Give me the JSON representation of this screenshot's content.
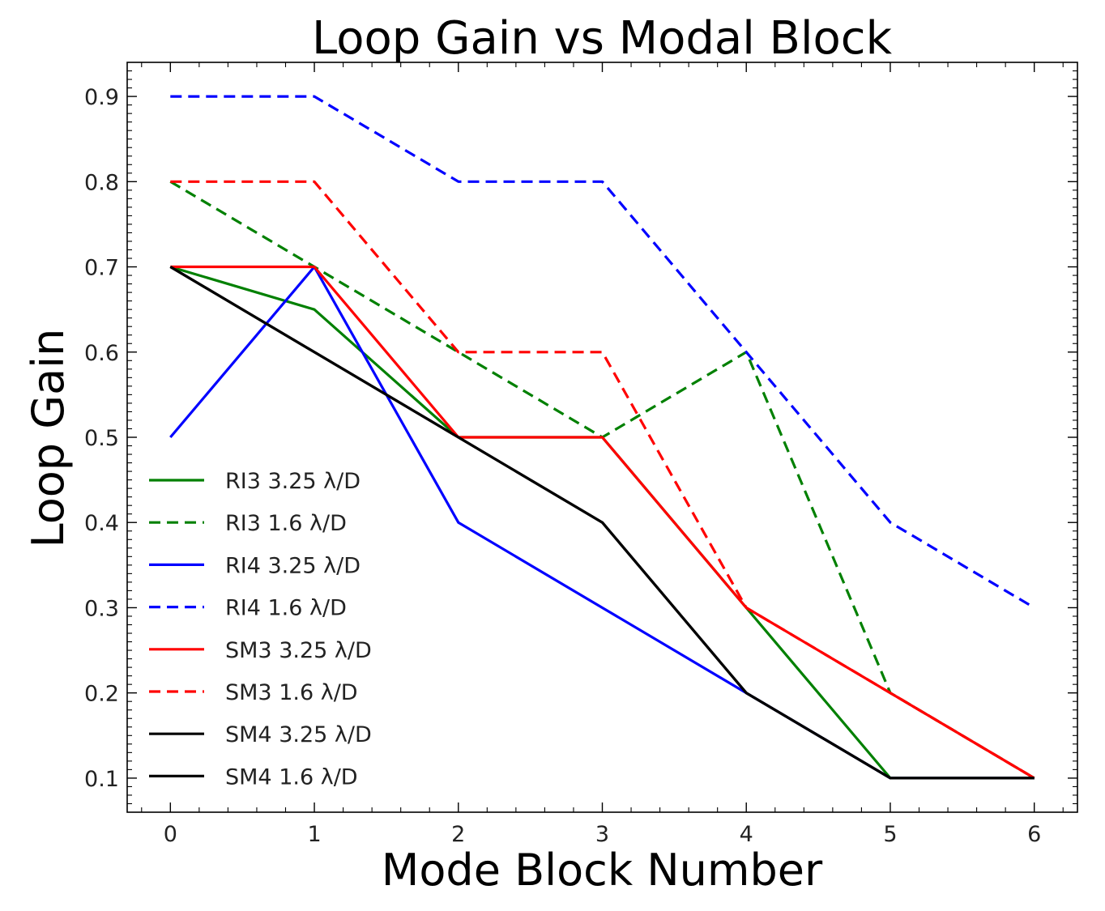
{
  "chart_data": {
    "type": "line",
    "title": "Loop Gain vs Modal Block",
    "xlabel": "Mode Block Number",
    "ylabel": "Loop Gain",
    "xlim": [
      -0.3,
      6.3
    ],
    "ylim": [
      0.06,
      0.94
    ],
    "x": [
      0,
      1,
      2,
      3,
      4,
      5,
      6
    ],
    "xticks": [
      "0",
      "1",
      "2",
      "3",
      "4",
      "5",
      "6"
    ],
    "yticks": [
      "0.1",
      "0.2",
      "0.3",
      "0.4",
      "0.5",
      "0.6",
      "0.7",
      "0.8",
      "0.9"
    ],
    "legend_position": "lower-left",
    "grid": false,
    "series": [
      {
        "name": "RI3 3.25 λ/D",
        "color": "#008000",
        "dash": "solid",
        "values": [
          0.7,
          0.65,
          0.5,
          0.5,
          0.3,
          0.1,
          0.1
        ]
      },
      {
        "name": "RI3 1.6 λ/D",
        "color": "#008000",
        "dash": "dashed",
        "values": [
          0.8,
          0.7,
          0.6,
          0.5,
          0.6,
          0.2,
          0.1
        ]
      },
      {
        "name": "RI4 3.25 λ/D",
        "color": "#0000ff",
        "dash": "solid",
        "values": [
          0.5,
          0.7,
          0.4,
          0.3,
          0.2,
          0.1,
          0.1
        ]
      },
      {
        "name": "RI4 1.6 λ/D",
        "color": "#0000ff",
        "dash": "dashed",
        "values": [
          0.9,
          0.9,
          0.8,
          0.8,
          0.6,
          0.4,
          0.3
        ]
      },
      {
        "name": "SM3 3.25 λ/D",
        "color": "#ff0000",
        "dash": "solid",
        "values": [
          0.7,
          0.7,
          0.5,
          0.5,
          0.3,
          0.2,
          0.1
        ]
      },
      {
        "name": "SM3 1.6 λ/D",
        "color": "#ff0000",
        "dash": "dashed",
        "values": [
          0.8,
          0.8,
          0.6,
          0.6,
          0.3,
          0.2,
          0.1
        ]
      },
      {
        "name": "SM4 3.25 λ/D",
        "color": "#000000",
        "dash": "solid",
        "values": [
          0.7,
          0.6,
          0.5,
          0.4,
          0.2,
          0.1,
          0.1
        ]
      },
      {
        "name": "SM4 1.6 λ/D",
        "color": "#000000",
        "dash": "solid",
        "values": [
          0.7,
          0.6,
          0.5,
          0.4,
          0.2,
          0.1,
          0.1
        ]
      }
    ]
  }
}
